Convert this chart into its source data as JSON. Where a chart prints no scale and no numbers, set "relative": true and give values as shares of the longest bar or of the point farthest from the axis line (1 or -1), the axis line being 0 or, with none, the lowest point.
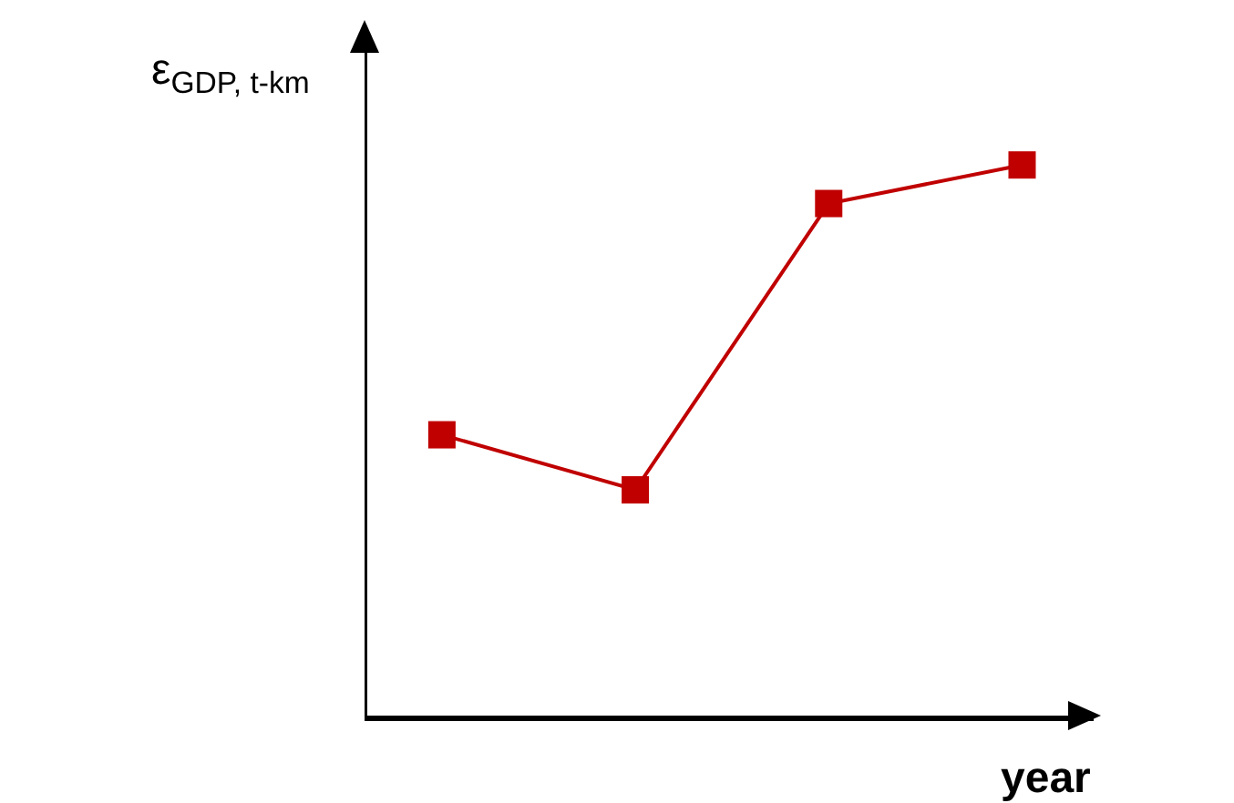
{
  "chart_data": {
    "type": "line",
    "relative": true,
    "xlabel": "year",
    "ylabel": "ε$_{GDP, t-km}$",
    "categories": [
      null,
      null,
      null,
      null
    ],
    "marker": "square",
    "line_style": "solid",
    "series": [
      {
        "color": "#c00000",
        "values": [
          0.51,
          0.41,
          0.93,
          1
        ]
      }
    ]
  }
}
